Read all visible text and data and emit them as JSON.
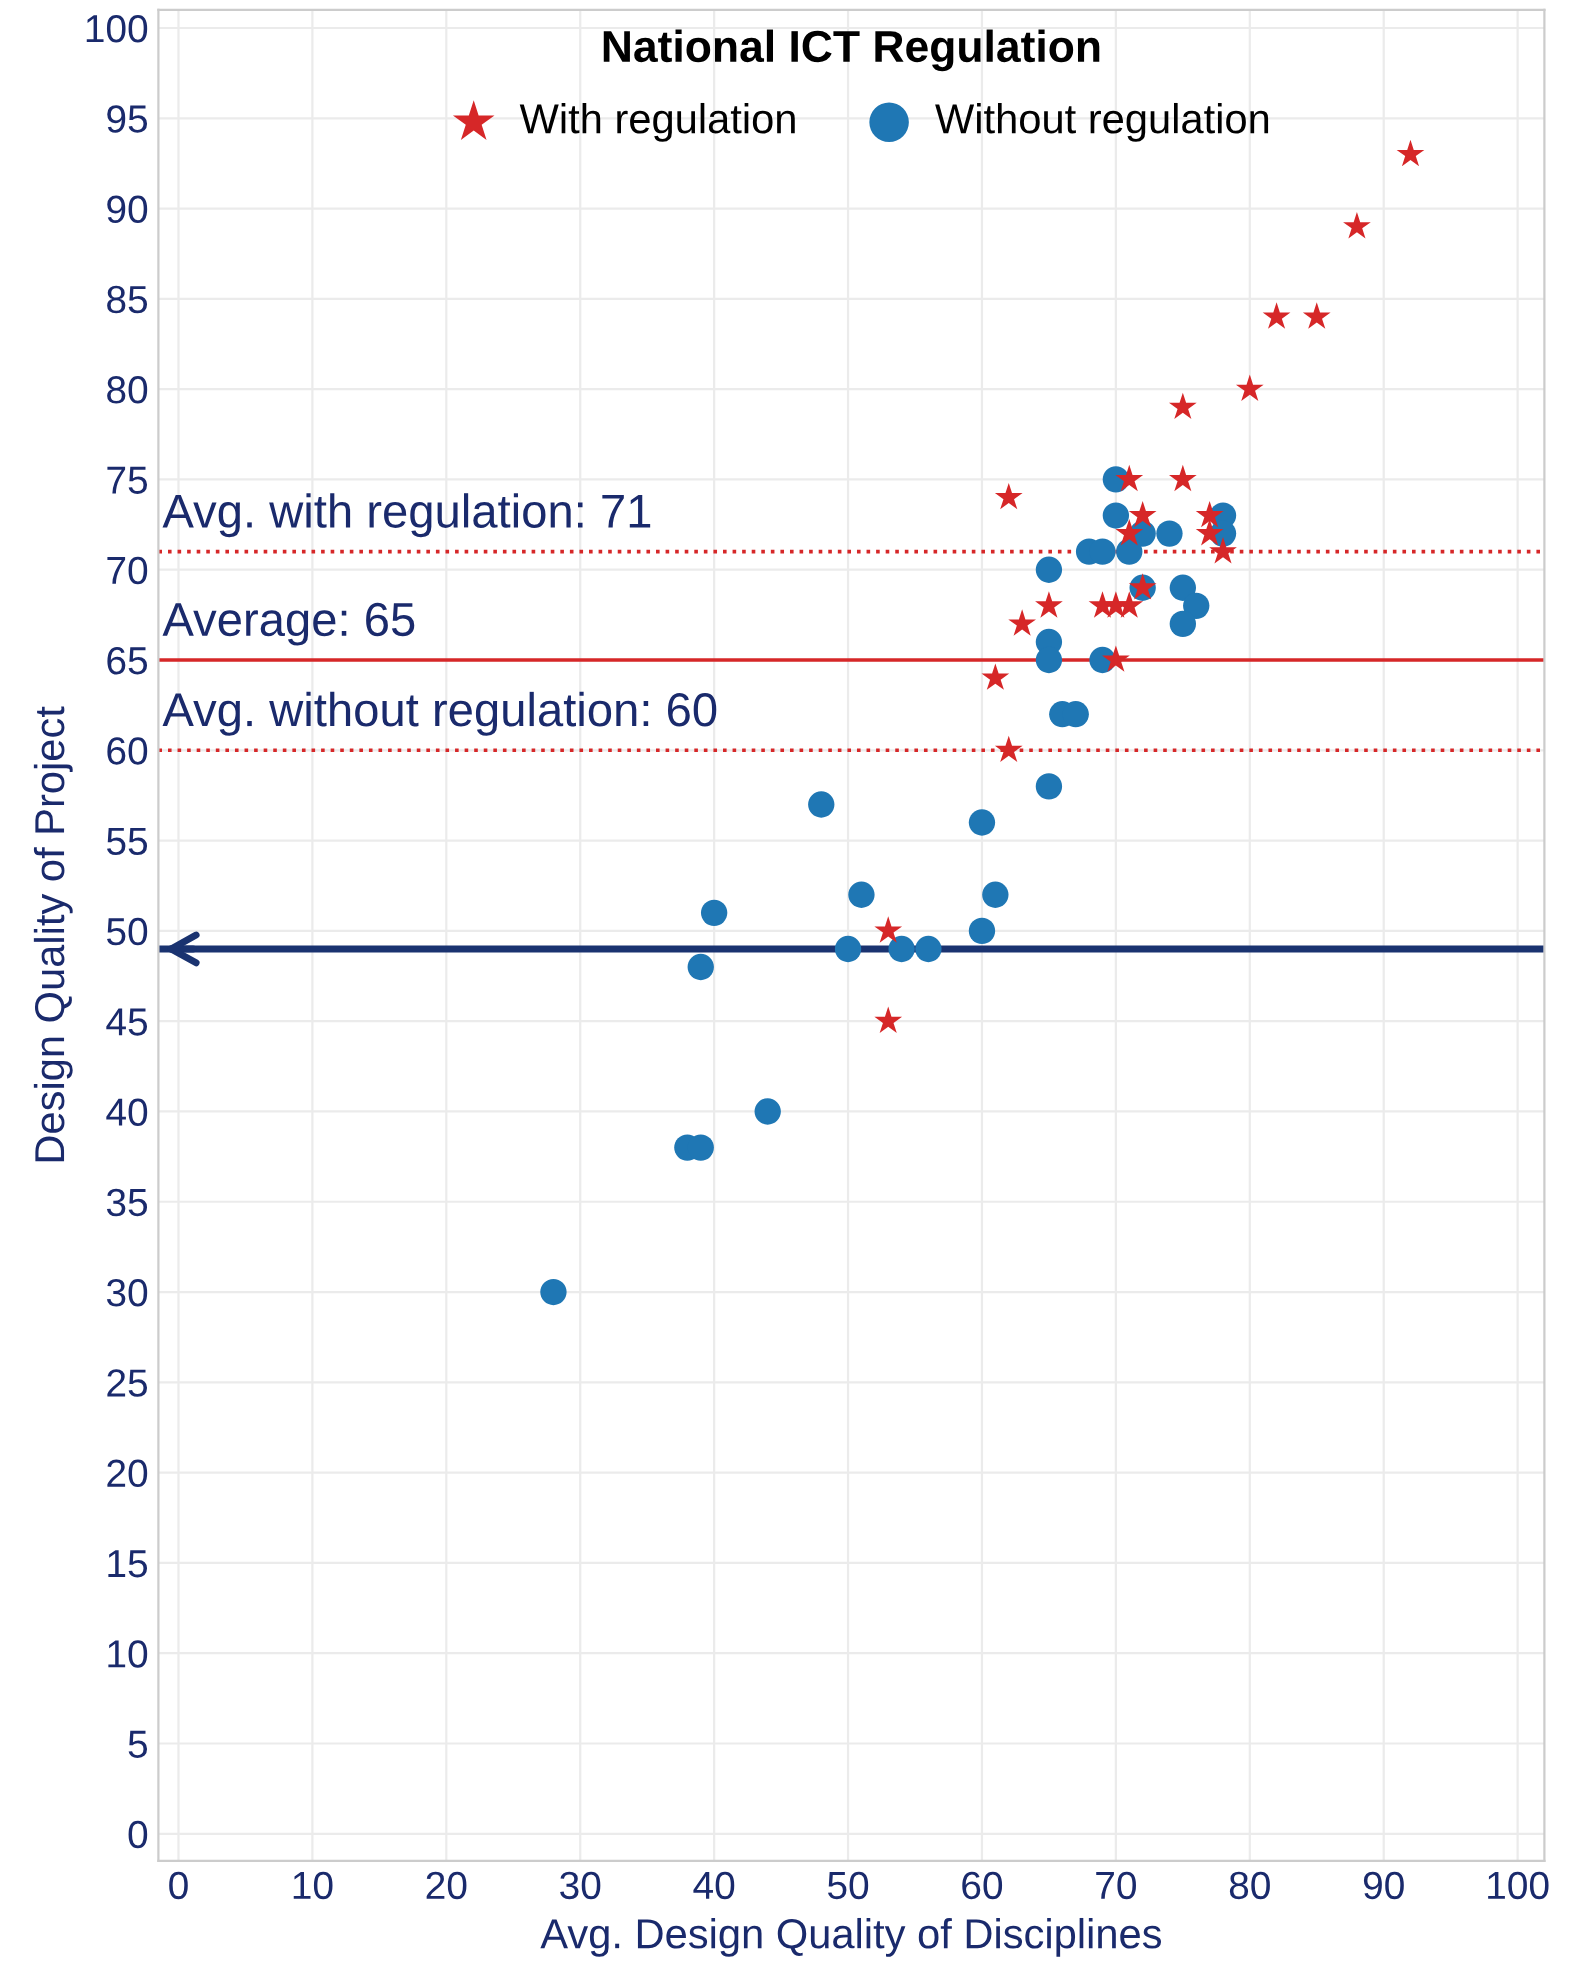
{
  "chart_data": {
    "type": "scatter",
    "title": "National ICT Regulation",
    "xlabel": "Avg. Design Quality of Disciplines",
    "ylabel": "Design Quality of Project",
    "series": [
      {
        "name": "With regulation",
        "color": "#d62728",
        "marker": "star",
        "x": [
          92,
          88,
          82,
          85,
          80,
          75,
          71,
          75,
          62,
          72,
          77,
          77,
          71,
          78,
          72,
          65,
          69,
          70,
          71,
          63,
          70,
          61,
          62,
          53,
          53
        ],
        "values": [
          93,
          89,
          84,
          84,
          80,
          79,
          75,
          75,
          74,
          73,
          73,
          72,
          72,
          71,
          69,
          68,
          68,
          68,
          68,
          67,
          65,
          64,
          60,
          50,
          45
        ]
      },
      {
        "name": "Without regulation",
        "color": "#1f77b4",
        "marker": "circle",
        "x": [
          70,
          70,
          72,
          74,
          78,
          78,
          68,
          69,
          71,
          65,
          72,
          75,
          76,
          75,
          65,
          65,
          69,
          66,
          67,
          65,
          60,
          48,
          51,
          61,
          40,
          60,
          50,
          54,
          56,
          39,
          44,
          38,
          39,
          28
        ],
        "values": [
          75,
          73,
          72,
          72,
          73,
          72,
          71,
          71,
          71,
          70,
          69,
          69,
          68,
          67,
          66,
          65,
          65,
          62,
          62,
          58,
          56,
          57,
          52,
          52,
          51,
          50,
          49,
          49,
          49,
          48,
          40,
          38,
          38,
          30
        ]
      }
    ],
    "ref_lines": [
      {
        "axis": "y",
        "value": 71,
        "label": "Avg. with regulation: 71",
        "color": "#d62728",
        "line_style": "dotted"
      },
      {
        "axis": "y",
        "value": 65,
        "label": "Average: 65",
        "color": "#d62728",
        "line_style": "solid"
      },
      {
        "axis": "y",
        "value": 60,
        "label": "Avg. without regulation: 60",
        "color": "#d62728",
        "line_style": "dotted"
      },
      {
        "axis": "y",
        "value": 49,
        "label": null,
        "color": "#1a3370",
        "line_style": "solid"
      }
    ],
    "xlim": [
      -1.5,
      102
    ],
    "ylim": [
      -1.5,
      101
    ],
    "xticks": [
      0,
      10,
      20,
      30,
      40,
      50,
      60,
      70,
      80,
      90,
      100
    ],
    "yticks": [
      0,
      5,
      10,
      15,
      20,
      25,
      30,
      35,
      40,
      45,
      50,
      55,
      60,
      65,
      70,
      75,
      80,
      85,
      90,
      95,
      100
    ],
    "grid": true,
    "legend": "top"
  }
}
